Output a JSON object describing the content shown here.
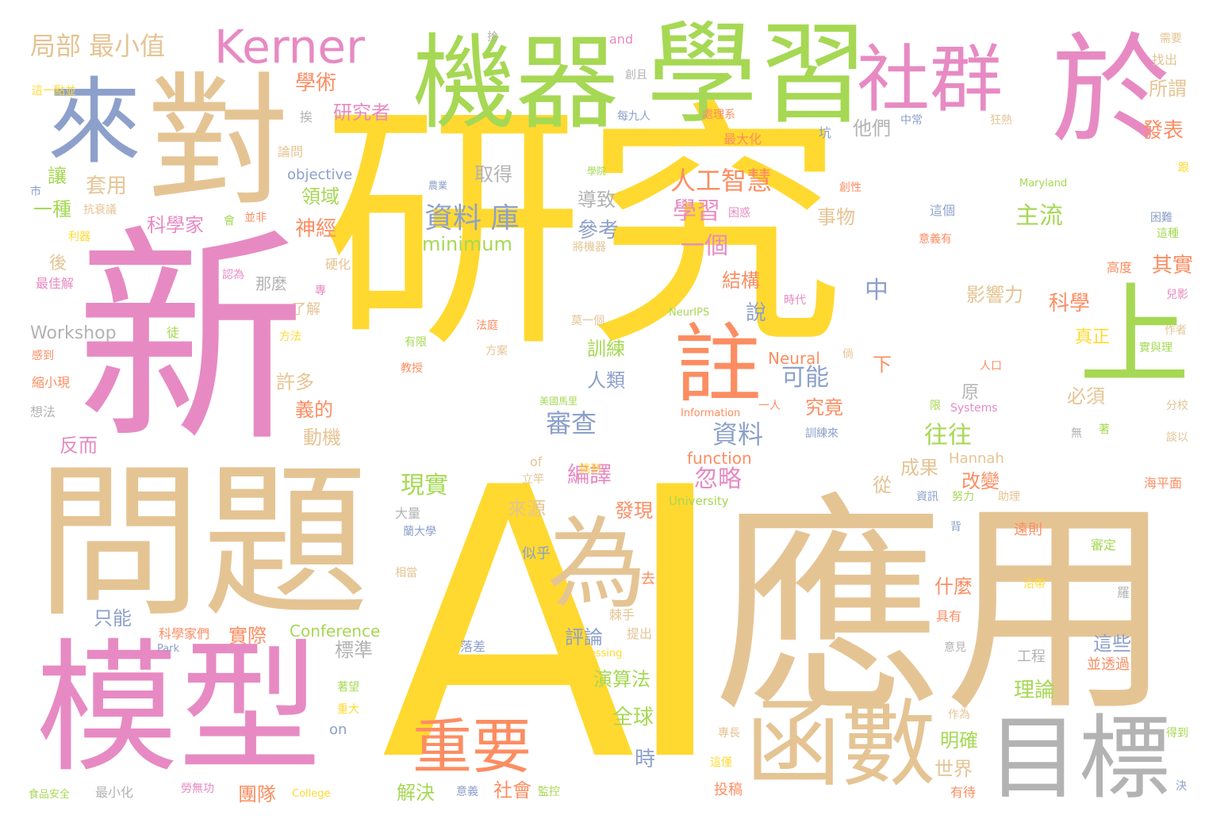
{
  "words": [
    {
      "text": "研究",
      "color": "#FFD92F"
    },
    {
      "text": "AI",
      "color": "#FFD92F"
    },
    {
      "text": "應用",
      "color": "#E5C494"
    },
    {
      "text": "新",
      "color": "#E78AC3"
    },
    {
      "text": "問題",
      "color": "#E5C494"
    },
    {
      "text": "模型",
      "color": "#E78AC3"
    },
    {
      "text": "學習",
      "color": "#A6D854"
    },
    {
      "text": "機器",
      "color": "#A6D854"
    },
    {
      "text": "來",
      "color": "#8DA0CB"
    },
    {
      "text": "對",
      "color": "#E5C494"
    },
    {
      "text": "於",
      "color": "#E78AC3"
    },
    {
      "text": "社群",
      "color": "#E78AC3"
    },
    {
      "text": "函數",
      "color": "#E5C494"
    },
    {
      "text": "目標",
      "color": "#B3B3B3"
    },
    {
      "text": "註",
      "color": "#FC8D62"
    },
    {
      "text": "為",
      "color": "#E5C494"
    },
    {
      "text": "上",
      "color": "#A6D854"
    },
    {
      "text": "重要",
      "color": "#FC8D62"
    },
    {
      "text": "Kerner",
      "color": "#E78AC3"
    },
    {
      "text": "局部 最小值",
      "color": "#E5C494"
    },
    {
      "text": "資料 庫",
      "color": "#8DA0CB"
    },
    {
      "text": "人工智慧",
      "color": "#FC8D62"
    },
    {
      "text": "學術",
      "color": "#FC8D62"
    },
    {
      "text": "研究者",
      "color": "#E78AC3"
    },
    {
      "text": "他們",
      "color": "#B3B3B3"
    },
    {
      "text": "主流",
      "color": "#A6D854"
    },
    {
      "text": "學習",
      "color": "#E78AC3"
    },
    {
      "text": "一個",
      "color": "#E78AC3"
    },
    {
      "text": "結構",
      "color": "#FC8D62"
    },
    {
      "text": "影響力",
      "color": "#E5C494"
    },
    {
      "text": "科學",
      "color": "#FC8D62"
    },
    {
      "text": "真正",
      "color": "#FFD92F"
    },
    {
      "text": "必須",
      "color": "#E5C494"
    },
    {
      "text": "往往",
      "color": "#A6D854"
    },
    {
      "text": "成果",
      "color": "#E5C494"
    },
    {
      "text": "改變",
      "color": "#FC8D62"
    },
    {
      "text": "可能",
      "color": "#8DA0CB"
    },
    {
      "text": "究竟",
      "color": "#FC8D62"
    },
    {
      "text": "資料",
      "color": "#8DA0CB"
    },
    {
      "text": "忽略",
      "color": "#E78AC3"
    },
    {
      "text": "審查",
      "color": "#8DA0CB"
    },
    {
      "text": "編譯",
      "color": "#E78AC3"
    },
    {
      "text": "現實",
      "color": "#A6D854"
    },
    {
      "text": "來源",
      "color": "#E5C494"
    },
    {
      "text": "發現",
      "color": "#FC8D62"
    },
    {
      "text": "讓",
      "color": "#A6D854"
    },
    {
      "text": "套用",
      "color": "#E5C494"
    },
    {
      "text": "一種",
      "color": "#A6D854"
    },
    {
      "text": "科學家",
      "color": "#E78AC3"
    },
    {
      "text": "領域",
      "color": "#A6D854"
    },
    {
      "text": "神經",
      "color": "#FC8D62"
    },
    {
      "text": "導致",
      "color": "#B3B3B3"
    },
    {
      "text": "參考",
      "color": "#8DA0CB"
    },
    {
      "text": "minimum",
      "color": "#A6D854"
    },
    {
      "text": "取得",
      "color": "#B3B3B3"
    },
    {
      "text": "人類",
      "color": "#8DA0CB"
    },
    {
      "text": "訓練",
      "color": "#A6D854"
    },
    {
      "text": "許多",
      "color": "#E5C494"
    },
    {
      "text": "義的",
      "color": "#FC8D62"
    },
    {
      "text": "動機",
      "color": "#E5C494"
    },
    {
      "text": "說",
      "color": "#8DA0CB"
    },
    {
      "text": "中",
      "color": "#8DA0CB"
    },
    {
      "text": "事物",
      "color": "#E5C494"
    },
    {
      "text": "下",
      "color": "#FC8D62"
    },
    {
      "text": "發表",
      "color": "#FC8D62"
    },
    {
      "text": "所謂",
      "color": "#E5C494"
    },
    {
      "text": "其實",
      "color": "#FC8D62"
    },
    {
      "text": "什麼",
      "color": "#FC8D62"
    },
    {
      "text": "這些",
      "color": "#8DA0CB"
    },
    {
      "text": "理論",
      "color": "#A6D854"
    },
    {
      "text": "世界",
      "color": "#E5C494"
    },
    {
      "text": "明確",
      "color": "#A6D854"
    },
    {
      "text": "解決",
      "color": "#A6D854"
    },
    {
      "text": "社會",
      "color": "#FC8D62"
    },
    {
      "text": "團隊",
      "color": "#FC8D62"
    },
    {
      "text": "全球",
      "color": "#A6D854"
    },
    {
      "text": "時",
      "color": "#8DA0CB"
    },
    {
      "text": "演算法",
      "color": "#A6D854"
    },
    {
      "text": "評論",
      "color": "#8DA0CB"
    },
    {
      "text": "實際",
      "color": "#FC8D62"
    },
    {
      "text": "標準",
      "color": "#B3B3B3"
    },
    {
      "text": "只能",
      "color": "#8DA0CB"
    },
    {
      "text": "反而",
      "color": "#E78AC3"
    },
    {
      "text": "Workshop",
      "color": "#B3B3B3"
    },
    {
      "text": "Conference",
      "color": "#A6D854"
    },
    {
      "text": "Neural",
      "color": "#FC8D62"
    },
    {
      "text": "function",
      "color": "#FC8D62"
    },
    {
      "text": "Hannah",
      "color": "#E5C494"
    },
    {
      "text": "objective",
      "color": "#8DA0CB"
    },
    {
      "text": "從",
      "color": "#E5C494"
    },
    {
      "text": "原",
      "color": "#B3B3B3"
    },
    {
      "text": "那麼",
      "color": "#B3B3B3"
    },
    {
      "text": "後",
      "color": "#E5C494"
    },
    {
      "text": "了解",
      "color": "#E5C494"
    },
    {
      "text": "硬化",
      "color": "#E5C494"
    },
    {
      "text": "科學家們",
      "color": "#FC8D62"
    },
    {
      "text": "提出",
      "color": "#E5C494"
    },
    {
      "text": "棘手",
      "color": "#E5C494"
    },
    {
      "text": "去",
      "color": "#FC8D62"
    },
    {
      "text": "似乎",
      "color": "#8DA0CB"
    },
    {
      "text": "大量",
      "color": "#B3B3B3"
    },
    {
      "text": "相當",
      "color": "#E5C494"
    },
    {
      "text": "落差",
      "color": "#8DA0CB"
    },
    {
      "text": "上升",
      "color": "#FFD92F"
    },
    {
      "text": "意義",
      "color": "#8DA0CB"
    },
    {
      "text": "監控",
      "color": "#A6D854"
    },
    {
      "text": "投稿",
      "color": "#FC8D62"
    },
    {
      "text": "有待",
      "color": "#FC8D62"
    },
    {
      "text": "專長",
      "color": "#E5C494"
    },
    {
      "text": "這僅",
      "color": "#FFD92F"
    },
    {
      "text": "作為",
      "color": "#E5C494"
    },
    {
      "text": "並透過",
      "color": "#FC8D62"
    },
    {
      "text": "工程",
      "color": "#B3B3B3"
    },
    {
      "text": "意見",
      "color": "#B3B3B3"
    },
    {
      "text": "具有",
      "color": "#FC8D62"
    },
    {
      "text": "羅",
      "color": "#B3B3B3"
    },
    {
      "text": "沿帶",
      "color": "#FFD92F"
    },
    {
      "text": "審定",
      "color": "#A6D854"
    },
    {
      "text": "遠則",
      "color": "#FC8D62"
    },
    {
      "text": "背",
      "color": "#8DA0CB"
    },
    {
      "text": "助理",
      "color": "#E5C494"
    },
    {
      "text": "努力",
      "color": "#A6D854"
    },
    {
      "text": "資訊",
      "color": "#8DA0CB"
    },
    {
      "text": "University",
      "color": "#A6D854"
    },
    {
      "text": "立竿",
      "color": "#E5C494"
    },
    {
      "text": "of",
      "color": "#E5C494"
    },
    {
      "text": "蘭大學",
      "color": "#8DA0CB"
    },
    {
      "text": "搞到",
      "color": "#FFD92F"
    },
    {
      "text": "美國馬里",
      "color": "#A6D854"
    },
    {
      "text": "教授",
      "color": "#FC8D62"
    },
    {
      "text": "有限",
      "color": "#A6D854"
    },
    {
      "text": "方案",
      "color": "#E5C494"
    },
    {
      "text": "法庭",
      "color": "#FC8D62"
    },
    {
      "text": "莫一個",
      "color": "#E5C494"
    },
    {
      "text": "時代",
      "color": "#E78AC3"
    },
    {
      "text": "NeurIPS",
      "color": "#A6D854"
    },
    {
      "text": "倘",
      "color": "#E5C494"
    },
    {
      "text": "Information",
      "color": "#FC8D62"
    },
    {
      "text": "一人",
      "color": "#FC8D62"
    },
    {
      "text": "訓練來",
      "color": "#8DA0CB"
    },
    {
      "text": "Systems",
      "color": "#E78AC3"
    },
    {
      "text": "限",
      "color": "#A6D854"
    },
    {
      "text": "無",
      "color": "#B3B3B3"
    },
    {
      "text": "著",
      "color": "#A6D854"
    },
    {
      "text": "Processing",
      "color": "#FFD92F"
    },
    {
      "text": "人口",
      "color": "#FC8D62"
    },
    {
      "text": "將機器",
      "color": "#E5C494"
    },
    {
      "text": "意義有",
      "color": "#FC8D62"
    },
    {
      "text": "這個",
      "color": "#8DA0CB"
    },
    {
      "text": "困惑",
      "color": "#E78AC3"
    },
    {
      "text": "Maryland",
      "color": "#A6D854"
    },
    {
      "text": "創性",
      "color": "#FC8D62"
    },
    {
      "text": "坑",
      "color": "#8DA0CB"
    },
    {
      "text": "中常",
      "color": "#8DA0CB"
    },
    {
      "text": "狂熱",
      "color": "#E5C494"
    },
    {
      "text": "最大化",
      "color": "#FC8D62"
    },
    {
      "text": "處理系",
      "color": "#FC8D62"
    },
    {
      "text": "每九人",
      "color": "#8DA0CB"
    },
    {
      "text": "創且",
      "color": "#B3B3B3"
    },
    {
      "text": "and",
      "color": "#E78AC3"
    },
    {
      "text": "拾",
      "color": "#B3B3B3"
    },
    {
      "text": "農業",
      "color": "#8DA0CB"
    },
    {
      "text": "學院",
      "color": "#A6D854"
    },
    {
      "text": "論問",
      "color": "#E5C494"
    },
    {
      "text": "挨",
      "color": "#B3B3B3"
    },
    {
      "text": "抗衰議",
      "color": "#E5C494"
    },
    {
      "text": "並非",
      "color": "#FC8D62"
    },
    {
      "text": "會",
      "color": "#A6D854"
    },
    {
      "text": "利器",
      "color": "#FFD92F"
    },
    {
      "text": "認為",
      "color": "#E78AC3"
    },
    {
      "text": "最佳解",
      "color": "#E78AC3"
    },
    {
      "text": "專",
      "color": "#E78AC3"
    },
    {
      "text": "徒",
      "color": "#A6D854"
    },
    {
      "text": "方法",
      "color": "#FFD92F"
    },
    {
      "text": "感到",
      "color": "#FC8D62"
    },
    {
      "text": "縮小現",
      "color": "#FC8D62"
    },
    {
      "text": "想法",
      "color": "#B3B3B3"
    },
    {
      "text": "市",
      "color": "#8DA0CB"
    },
    {
      "text": "這一點並",
      "color": "#FFD92F"
    },
    {
      "text": "需要",
      "color": "#E5C494"
    },
    {
      "text": "找出",
      "color": "#E5C494"
    },
    {
      "text": "跟",
      "color": "#FFD92F"
    },
    {
      "text": "困難",
      "color": "#8DA0CB"
    },
    {
      "text": "這種",
      "color": "#A6D854"
    },
    {
      "text": "高度",
      "color": "#FC8D62"
    },
    {
      "text": "兒影",
      "color": "#E78AC3"
    },
    {
      "text": "作者",
      "color": "#E5C494"
    },
    {
      "text": "實與理",
      "color": "#A6D854"
    },
    {
      "text": "分校",
      "color": "#E5C494"
    },
    {
      "text": "談以",
      "color": "#E5C494"
    },
    {
      "text": "海平面",
      "color": "#FC8D62"
    },
    {
      "text": "得到",
      "color": "#A6D854"
    },
    {
      "text": "決",
      "color": "#8DA0CB"
    },
    {
      "text": "on",
      "color": "#8DA0CB"
    },
    {
      "text": "重大",
      "color": "#FFD92F"
    },
    {
      "text": "著望",
      "color": "#A6D854"
    },
    {
      "text": "Park",
      "color": "#8DA0CB"
    },
    {
      "text": "College",
      "color": "#FFD92F"
    },
    {
      "text": "勞無功",
      "color": "#E78AC3"
    },
    {
      "text": "食品安全",
      "color": "#A6D854"
    },
    {
      "text": "最小化",
      "color": "#B3B3B3"
    }
  ]
}
